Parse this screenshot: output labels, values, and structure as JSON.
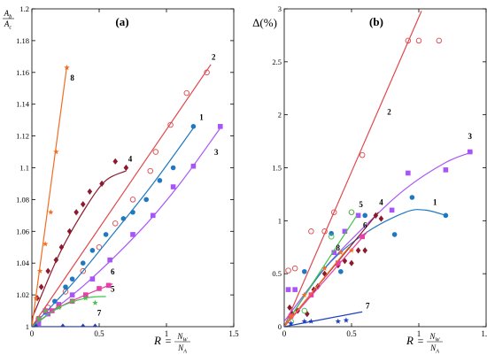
{
  "chart_data": [
    {
      "panel": "(a)",
      "type": "scatter",
      "ylabel_num": "A_b",
      "ylabel_den": "A_c",
      "xlabel_var": "R",
      "xlabel_num": "N_W",
      "xlabel_den": "N_A",
      "xlim": [
        0,
        1.5
      ],
      "ylim": [
        1.0,
        1.2
      ],
      "xticks": [
        0,
        0.5,
        1,
        1.5
      ],
      "xtick_labels": [
        "0",
        "0.5",
        "1",
        "1.5"
      ],
      "yticks": [
        1,
        1.02,
        1.04,
        1.06,
        1.08,
        1.1,
        1.12,
        1.14,
        1.16,
        1.18,
        1.2
      ],
      "ytick_labels": [
        "1",
        "1.02",
        "1.04",
        "1.06",
        "1.08",
        "1.1",
        "1.12",
        "1.14",
        "1.16",
        "1.18",
        "1.2"
      ],
      "series": [
        {
          "label": "2",
          "color": "#e0484d",
          "marker": "circle-open",
          "points": [
            [
              0.05,
              1.005
            ],
            [
              0.12,
              1.012
            ],
            [
              0.25,
              1.022
            ],
            [
              0.38,
              1.035
            ],
            [
              0.5,
              1.05
            ],
            [
              0.62,
              1.065
            ],
            [
              0.75,
              1.08
            ],
            [
              0.88,
              1.098
            ],
            [
              0.92,
              1.11
            ],
            [
              1.03,
              1.127
            ],
            [
              1.15,
              1.147
            ],
            [
              1.3,
              1.16
            ]
          ],
          "fit": [
            [
              0,
              1.0
            ],
            [
              1.33,
              1.165
            ]
          ],
          "label_at": [
            1.35,
            1.168
          ]
        },
        {
          "label": "1",
          "color": "#1f78c1",
          "marker": "circle",
          "points": [
            [
              0.05,
              1.003
            ],
            [
              0.1,
              1.009
            ],
            [
              0.17,
              1.016
            ],
            [
              0.25,
              1.025
            ],
            [
              0.3,
              1.03
            ],
            [
              0.38,
              1.04
            ],
            [
              0.45,
              1.048
            ],
            [
              0.55,
              1.058
            ],
            [
              0.68,
              1.068
            ],
            [
              0.75,
              1.072
            ],
            [
              0.85,
              1.08
            ],
            [
              0.95,
              1.092
            ],
            [
              1.05,
              1.1
            ],
            [
              1.2,
              1.126
            ]
          ],
          "fit": [
            [
              0,
              1.0
            ],
            [
              0.3,
              1.027
            ],
            [
              0.6,
              1.058
            ],
            [
              0.9,
              1.09
            ],
            [
              1.2,
              1.125
            ]
          ],
          "label_at": [
            1.26,
            1.13
          ]
        },
        {
          "label": "3",
          "color": "#a855f7",
          "marker": "square",
          "points": [
            [
              0.05,
              1.002
            ],
            [
              0.12,
              1.008
            ],
            [
              0.2,
              1.014
            ],
            [
              0.3,
              1.02
            ],
            [
              0.45,
              1.03
            ],
            [
              0.58,
              1.042
            ],
            [
              0.75,
              1.058
            ],
            [
              0.9,
              1.07
            ],
            [
              1.05,
              1.088
            ],
            [
              1.2,
              1.101
            ],
            [
              1.4,
              1.126
            ]
          ],
          "fit": [
            [
              0,
              1.0
            ],
            [
              0.4,
              1.027
            ],
            [
              0.8,
              1.06
            ],
            [
              1.1,
              1.09
            ],
            [
              1.4,
              1.125
            ]
          ],
          "label_at": [
            1.37,
            1.108
          ]
        },
        {
          "label": "4",
          "color": "#8b1a2e",
          "marker": "diamond",
          "points": [
            [
              0.04,
              1.018
            ],
            [
              0.07,
              1.025
            ],
            [
              0.12,
              1.035
            ],
            [
              0.18,
              1.042
            ],
            [
              0.22,
              1.05
            ],
            [
              0.28,
              1.06
            ],
            [
              0.33,
              1.072
            ],
            [
              0.38,
              1.077
            ],
            [
              0.43,
              1.085
            ],
            [
              0.52,
              1.09
            ],
            [
              0.62,
              1.104
            ],
            [
              0.7,
              1.1
            ]
          ],
          "fit": [
            [
              0,
              1.005
            ],
            [
              0.2,
              1.045
            ],
            [
              0.4,
              1.075
            ],
            [
              0.55,
              1.092
            ],
            [
              0.7,
              1.098
            ]
          ],
          "label_at": [
            0.73,
            1.104
          ]
        },
        {
          "label": "8",
          "color": "#f26d21",
          "marker": "star",
          "points": [
            [
              0.03,
              1.018
            ],
            [
              0.06,
              1.035
            ],
            [
              0.1,
              1.052
            ],
            [
              0.14,
              1.072
            ],
            [
              0.18,
              1.11
            ],
            [
              0.26,
              1.163
            ]
          ],
          "fit": [
            [
              0,
              1.0
            ],
            [
              0.26,
              1.164
            ]
          ],
          "label_at": [
            0.3,
            1.155
          ]
        },
        {
          "label": "6",
          "color": "#e83fa5",
          "marker": "square",
          "points": [
            [
              0.05,
              1.005
            ],
            [
              0.1,
              1.01
            ],
            [
              0.15,
              1.01
            ],
            [
              0.2,
              1.013
            ],
            [
              0.3,
              1.016
            ],
            [
              0.4,
              1.02
            ],
            [
              0.5,
              1.024
            ],
            [
              0.57,
              1.026
            ]
          ],
          "fit": [
            [
              0,
              1.0
            ],
            [
              0.2,
              1.012
            ],
            [
              0.4,
              1.02
            ],
            [
              0.6,
              1.027
            ]
          ],
          "label_at": [
            0.6,
            1.033
          ]
        },
        {
          "label": "5",
          "color": "#45c24a",
          "marker": "star",
          "points": [
            [
              0.05,
              1.005
            ],
            [
              0.1,
              1.01
            ],
            [
              0.2,
              1.012
            ],
            [
              0.3,
              1.016
            ],
            [
              0.4,
              1.018
            ],
            [
              0.47,
              1.015
            ]
          ],
          "fit": [
            [
              0,
              1.0
            ],
            [
              0.2,
              1.012
            ],
            [
              0.4,
              1.018
            ],
            [
              0.55,
              1.019
            ]
          ],
          "label_at": [
            0.6,
            1.022
          ]
        },
        {
          "label": "7",
          "color": "#1f3fbf",
          "marker": "diamond",
          "points": [
            [
              0.03,
              1.0
            ],
            [
              0.23,
              1.0
            ],
            [
              0.38,
              1.0
            ],
            [
              0.47,
              1.0
            ]
          ],
          "fit": [
            [
              0,
              1.0
            ],
            [
              0.47,
              1.0
            ]
          ],
          "label_at": [
            0.5,
            1.007
          ]
        }
      ]
    },
    {
      "panel": "(b)",
      "type": "scatter",
      "ylabel": "Δ(%)",
      "xlabel_var": "R",
      "xlabel_num": "N_W",
      "xlabel_den": "N_A",
      "xlim": [
        0,
        1.5
      ],
      "ylim": [
        0,
        3
      ],
      "xticks": [
        0,
        0.5,
        1,
        1.5
      ],
      "xtick_labels": [
        "0",
        "0.5",
        "1",
        "1.5"
      ],
      "yticks": [
        0,
        0.5,
        1,
        1.5,
        2,
        2.5,
        3
      ],
      "ytick_labels": [
        "0",
        "0.5",
        "1",
        "1.5",
        "2",
        "2.5",
        "3"
      ],
      "series": [
        {
          "label": "2",
          "color": "#e0484d",
          "marker": "circle-open",
          "points": [
            [
              0.03,
              0.53
            ],
            [
              0.08,
              0.55
            ],
            [
              0.2,
              0.9
            ],
            [
              0.3,
              0.9
            ],
            [
              0.37,
              1.08
            ],
            [
              0.5,
              1.08
            ],
            [
              0.58,
              1.62
            ],
            [
              0.92,
              2.7
            ],
            [
              1.0,
              2.7
            ],
            [
              1.15,
              2.7
            ]
          ],
          "fit": [
            [
              0,
              0.0
            ],
            [
              1.02,
              2.98
            ]
          ],
          "label_at": [
            0.78,
            2.0
          ]
        },
        {
          "label": "3",
          "color": "#a855f7",
          "marker": "square",
          "points": [
            [
              0.03,
              0.35
            ],
            [
              0.08,
              0.35
            ],
            [
              0.37,
              0.7
            ],
            [
              0.45,
              0.9
            ],
            [
              0.55,
              1.05
            ],
            [
              0.8,
              1.1
            ],
            [
              0.92,
              1.45
            ],
            [
              1.2,
              1.48
            ],
            [
              1.38,
              1.65
            ]
          ],
          "fit": [
            [
              0,
              0.05
            ],
            [
              0.3,
              0.55
            ],
            [
              0.6,
              0.95
            ],
            [
              0.9,
              1.3
            ],
            [
              1.2,
              1.55
            ],
            [
              1.4,
              1.65
            ]
          ],
          "label_at": [
            1.38,
            1.77
          ]
        },
        {
          "label": "1",
          "color": "#1f78c1",
          "marker": "circle",
          "points": [
            [
              0.15,
              0.52
            ],
            [
              0.35,
              0.88
            ],
            [
              0.42,
              0.52
            ],
            [
              0.6,
              1.05
            ],
            [
              0.82,
              0.87
            ],
            [
              0.95,
              1.22
            ],
            [
              1.2,
              1.05
            ]
          ],
          "fit": [
            [
              0,
              0.0
            ],
            [
              0.3,
              0.55
            ],
            [
              0.6,
              0.88
            ],
            [
              0.9,
              1.08
            ],
            [
              1.05,
              1.1
            ],
            [
              1.2,
              1.05
            ]
          ],
          "label_at": [
            1.12,
            1.15
          ]
        },
        {
          "label": "4",
          "color": "#8b1a2e",
          "marker": "diamond",
          "points": [
            [
              0.04,
              0.18
            ],
            [
              0.06,
              0.12
            ],
            [
              0.1,
              0.15
            ],
            [
              0.17,
              0.12
            ],
            [
              0.22,
              0.35
            ],
            [
              0.25,
              0.38
            ],
            [
              0.3,
              0.5
            ],
            [
              0.4,
              0.58
            ],
            [
              0.45,
              0.62
            ],
            [
              0.5,
              0.6
            ],
            [
              0.55,
              0.72
            ],
            [
              0.6,
              0.72
            ],
            [
              0.68,
              1.05
            ],
            [
              0.72,
              1.02
            ]
          ],
          "fit": [
            [
              0,
              0.0
            ],
            [
              0.7,
              1.08
            ]
          ],
          "label_at": [
            0.72,
            1.15
          ]
        },
        {
          "label": "5",
          "color": "#45c24a",
          "marker": "circle-open",
          "points": [
            [
              0.05,
              0.05
            ],
            [
              0.15,
              0.15
            ],
            [
              0.35,
              0.85
            ],
            [
              0.5,
              1.08
            ]
          ],
          "fit": [
            [
              0,
              0.0
            ],
            [
              0.54,
              1.05
            ]
          ],
          "label_at": [
            0.57,
            1.13
          ]
        },
        {
          "label": "6",
          "color": "#e83fa5",
          "marker": "square",
          "points": [
            [
              0.05,
              0.1
            ],
            [
              0.2,
              0.3
            ],
            [
              0.4,
              0.6
            ],
            [
              0.58,
              0.85
            ]
          ],
          "fit": [
            [
              0,
              0.0
            ],
            [
              0.62,
              0.9
            ]
          ],
          "label_at": [
            0.6,
            0.93
          ]
        },
        {
          "label": "8",
          "color": "#f26d21",
          "marker": "star",
          "points": [
            [
              0.05,
              0.1
            ],
            [
              0.15,
              0.3
            ],
            [
              0.3,
              0.55
            ],
            [
              0.42,
              0.7
            ],
            [
              0.5,
              0.72
            ]
          ],
          "fit": [
            [
              0,
              0.0
            ],
            [
              0.48,
              0.75
            ]
          ],
          "label_at": [
            0.4,
            0.72
          ]
        },
        {
          "label": "7",
          "color": "#1f3fbf",
          "marker": "star",
          "points": [
            [
              0.05,
              0.03
            ],
            [
              0.15,
              0.05
            ],
            [
              0.2,
              0.05
            ],
            [
              0.4,
              0.05
            ],
            [
              0.46,
              0.06
            ]
          ],
          "fit": [
            [
              0,
              0.0
            ],
            [
              0.58,
              0.14
            ]
          ],
          "label_at": [
            0.62,
            0.17
          ]
        }
      ]
    }
  ]
}
